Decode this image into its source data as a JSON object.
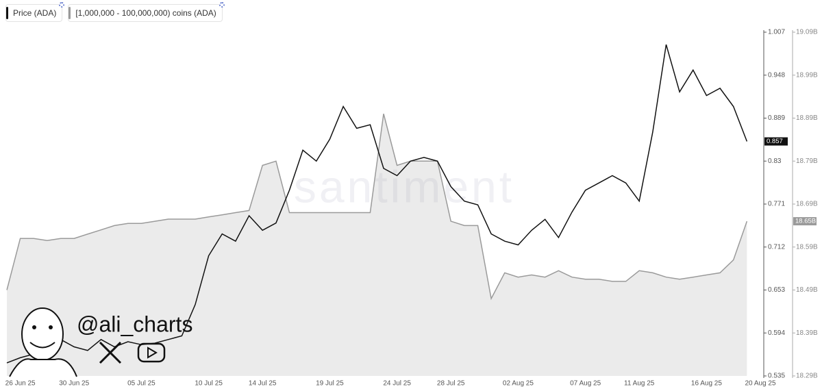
{
  "chart_data": {
    "type": "line",
    "watermark": "santiment",
    "annotation": "@ali_charts",
    "categories": [
      null,
      "26 Jun 25",
      null,
      null,
      null,
      "30 Jun 25",
      null,
      null,
      null,
      null,
      "05 Jul 25",
      null,
      null,
      null,
      null,
      "10 Jul 25",
      null,
      null,
      null,
      "14 Jul 25",
      null,
      null,
      null,
      null,
      "19 Jul 25",
      null,
      null,
      null,
      null,
      "24 Jul 25",
      null,
      null,
      null,
      "28 Jul 25",
      null,
      null,
      null,
      null,
      "02 Aug 25",
      null,
      null,
      null,
      null,
      "07 Aug 25",
      null,
      null,
      null,
      "11 Aug 25",
      null,
      null,
      null,
      null,
      "16 Aug 25",
      null,
      null,
      null,
      "20 Aug 25"
    ],
    "series": [
      {
        "name": "Price (ADA)",
        "color": "#111111",
        "axis": "y",
        "values": [
          0.553,
          0.56,
          0.565,
          0.58,
          0.585,
          0.575,
          0.57,
          0.585,
          0.575,
          0.582,
          0.578,
          0.58,
          0.585,
          0.59,
          0.633,
          0.7,
          0.73,
          0.72,
          0.755,
          0.735,
          0.745,
          0.79,
          0.845,
          0.83,
          0.86,
          0.905,
          0.875,
          0.88,
          0.82,
          0.81,
          0.83,
          0.835,
          0.83,
          0.795,
          0.775,
          0.77,
          0.73,
          0.72,
          0.715,
          0.735,
          0.75,
          0.725,
          0.76,
          0.79,
          0.8,
          0.81,
          0.8,
          0.775,
          0.87,
          0.99,
          0.925,
          0.955,
          0.92,
          0.93,
          0.905,
          0.857,
          null
        ]
      },
      {
        "name": "[1,000,000 - 100,000,000) coins (ADA)",
        "color": "#9a9a9a",
        "axis": "y2",
        "style": "area",
        "values": [
          18.49,
          18.61,
          18.61,
          18.605,
          18.61,
          18.61,
          18.62,
          18.63,
          18.64,
          18.645,
          18.645,
          18.65,
          18.655,
          18.655,
          18.655,
          18.66,
          18.665,
          18.67,
          18.675,
          18.78,
          18.79,
          18.67,
          18.67,
          18.67,
          18.67,
          18.67,
          18.67,
          18.67,
          18.9,
          18.78,
          18.79,
          18.79,
          18.79,
          18.65,
          18.64,
          18.64,
          18.47,
          18.53,
          18.52,
          18.525,
          18.52,
          18.535,
          18.52,
          18.515,
          18.515,
          18.51,
          18.51,
          18.535,
          18.53,
          18.52,
          18.515,
          18.52,
          18.525,
          18.53,
          18.56,
          18.65,
          null
        ],
        "value_labels": [
          null,
          null,
          null,
          null,
          null,
          null,
          null,
          null,
          null,
          null,
          null,
          null,
          null,
          null,
          null,
          null,
          null,
          null,
          null,
          null,
          null,
          null,
          null,
          null,
          null,
          null,
          null,
          null,
          null,
          null,
          null,
          null,
          null,
          null,
          null,
          null,
          null,
          null,
          null,
          null,
          null,
          null,
          null,
          null,
          null,
          null,
          null,
          null,
          null,
          null,
          null,
          null,
          null,
          null,
          null,
          "18.65B",
          null
        ]
      }
    ],
    "ylim": [
      0.535,
      1.007
    ],
    "yticks": [
      0.535,
      0.594,
      0.653,
      0.712,
      0.771,
      0.83,
      0.889,
      0.948,
      1.007
    ],
    "y2lim": [
      18.29,
      19.09
    ],
    "y2ticks": [
      {
        "value": 18.29,
        "label": "18.29B"
      },
      {
        "value": 18.39,
        "label": "18.39B"
      },
      {
        "value": 18.49,
        "label": "18.49B"
      },
      {
        "value": 18.59,
        "label": "18.59B"
      },
      {
        "value": 18.69,
        "label": "18.69B"
      },
      {
        "value": 18.79,
        "label": "18.79B"
      },
      {
        "value": 18.89,
        "label": "18.89B"
      },
      {
        "value": 18.99,
        "label": "18.99B"
      },
      {
        "value": 19.09,
        "label": "19.09B"
      }
    ],
    "grid": false
  }
}
